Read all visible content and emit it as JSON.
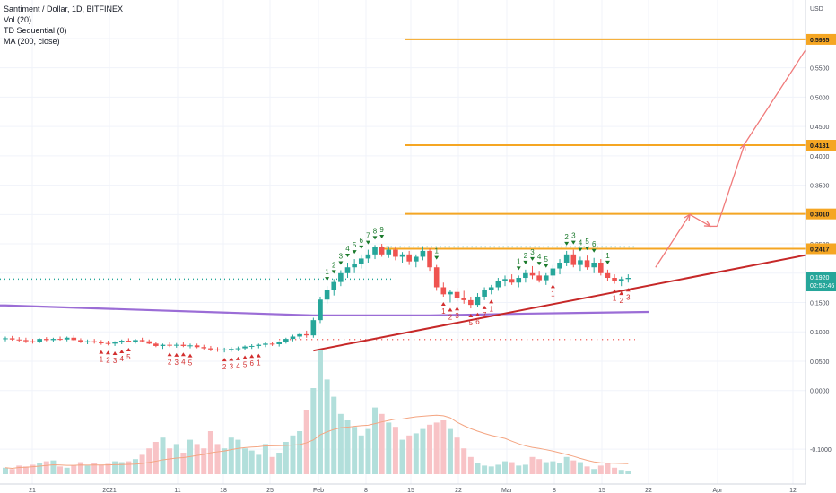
{
  "legend": {
    "title": "Santiment / Dollar, 1D, BITFINEX",
    "vol": "Vol (20)",
    "td": "TD Sequential (0)",
    "ma": "MA (200, close)"
  },
  "colors": {
    "up": "#26a69a",
    "down": "#ef5350",
    "ma": "#9b6dd6",
    "trend": "#c62828",
    "levels": "#f5a623",
    "arrows": "#f07a7a",
    "volMa": "#f4a582"
  },
  "chart_data": {
    "type": "candlestick",
    "title": "Santiment / Dollar, 1D, BITFINEX",
    "currency_label": "USD",
    "y_ticks": [
      "0.6000",
      "0.5500",
      "0.5000",
      "0.4500",
      "0.4000",
      "0.3500",
      "0.3000",
      "0.2500",
      "0.2000",
      "0.1500",
      "0.1000",
      "0.0500",
      "0.0000",
      "-0.1000"
    ],
    "x_ticks": [
      "21",
      "2021",
      "11",
      "18",
      "25",
      "Feb",
      "8",
      "15",
      "22",
      "Mar",
      "8",
      "15",
      "22",
      "Apr",
      "12"
    ],
    "last_price": "0.1920",
    "countdown": "02:52:46",
    "levels": [
      {
        "value": 0.2417,
        "label": "0.2417"
      },
      {
        "value": 0.301,
        "label": "0.3010"
      },
      {
        "value": 0.4181,
        "label": "0.4181"
      },
      {
        "value": 0.5985,
        "label": "0.5985"
      }
    ],
    "support_dotted_level": 0.19,
    "resistance_dotted_level": 0.245,
    "lower_dotted_level": 0.087,
    "trendline": {
      "start": {
        "x": "Jan 29",
        "y": 0.068
      },
      "end": {
        "x": "Apr 15",
        "y": 0.24
      }
    },
    "ma200": [
      {
        "x": "Dec 15",
        "y": 0.145
      },
      {
        "x": "Jan 29",
        "y": 0.128
      },
      {
        "x": "Feb 15",
        "y": 0.128
      },
      {
        "x": "Mar 1",
        "y": 0.131
      },
      {
        "x": "Mar 19",
        "y": 0.134
      }
    ],
    "projection_path": [
      {
        "x": "Mar 20",
        "y": 0.21
      },
      {
        "x": "Mar 25",
        "y": 0.3
      },
      {
        "x": "Mar 28",
        "y": 0.28
      },
      {
        "x": "Mar 29",
        "y": 0.28
      },
      {
        "x": "Apr 2",
        "y": 0.42
      },
      {
        "x": "Apr 12",
        "y": 0.6
      }
    ],
    "candles": [
      [
        0.088,
        0.092,
        0.084,
        0.089
      ],
      [
        0.089,
        0.093,
        0.085,
        0.087
      ],
      [
        0.087,
        0.091,
        0.083,
        0.086
      ],
      [
        0.086,
        0.09,
        0.081,
        0.084
      ],
      [
        0.084,
        0.088,
        0.08,
        0.083
      ],
      [
        0.083,
        0.089,
        0.081,
        0.088
      ],
      [
        0.088,
        0.091,
        0.084,
        0.086
      ],
      [
        0.086,
        0.09,
        0.083,
        0.088
      ],
      [
        0.088,
        0.092,
        0.085,
        0.087
      ],
      [
        0.087,
        0.092,
        0.084,
        0.09
      ],
      [
        0.09,
        0.094,
        0.085,
        0.086
      ],
      [
        0.086,
        0.089,
        0.081,
        0.083
      ],
      [
        0.083,
        0.087,
        0.079,
        0.084
      ],
      [
        0.084,
        0.088,
        0.08,
        0.082
      ],
      [
        0.082,
        0.086,
        0.078,
        0.081
      ],
      [
        0.081,
        0.085,
        0.077,
        0.08
      ],
      [
        0.08,
        0.084,
        0.076,
        0.082
      ],
      [
        0.082,
        0.087,
        0.079,
        0.085
      ],
      [
        0.085,
        0.089,
        0.082,
        0.083
      ],
      [
        0.083,
        0.088,
        0.08,
        0.086
      ],
      [
        0.086,
        0.09,
        0.082,
        0.084
      ],
      [
        0.084,
        0.087,
        0.079,
        0.08
      ],
      [
        0.08,
        0.083,
        0.074,
        0.076
      ],
      [
        0.076,
        0.08,
        0.071,
        0.078
      ],
      [
        0.078,
        0.082,
        0.074,
        0.077
      ],
      [
        0.077,
        0.081,
        0.073,
        0.078
      ],
      [
        0.078,
        0.082,
        0.074,
        0.076
      ],
      [
        0.076,
        0.08,
        0.072,
        0.077
      ],
      [
        0.077,
        0.08,
        0.072,
        0.074
      ],
      [
        0.074,
        0.078,
        0.07,
        0.072
      ],
      [
        0.072,
        0.076,
        0.067,
        0.07
      ],
      [
        0.07,
        0.074,
        0.066,
        0.069
      ],
      [
        0.069,
        0.073,
        0.065,
        0.07
      ],
      [
        0.07,
        0.074,
        0.066,
        0.071
      ],
      [
        0.071,
        0.075,
        0.067,
        0.072
      ],
      [
        0.072,
        0.077,
        0.069,
        0.075
      ],
      [
        0.075,
        0.079,
        0.071,
        0.076
      ],
      [
        0.076,
        0.08,
        0.072,
        0.078
      ],
      [
        0.078,
        0.082,
        0.074,
        0.08
      ],
      [
        0.08,
        0.083,
        0.076,
        0.079
      ],
      [
        0.079,
        0.084,
        0.075,
        0.083
      ],
      [
        0.083,
        0.09,
        0.08,
        0.088
      ],
      [
        0.088,
        0.095,
        0.084,
        0.092
      ],
      [
        0.092,
        0.099,
        0.088,
        0.096
      ],
      [
        0.096,
        0.102,
        0.09,
        0.094
      ],
      [
        0.094,
        0.124,
        0.09,
        0.12
      ],
      [
        0.12,
        0.16,
        0.115,
        0.155
      ],
      [
        0.155,
        0.178,
        0.148,
        0.172
      ],
      [
        0.172,
        0.19,
        0.162,
        0.185
      ],
      [
        0.185,
        0.205,
        0.178,
        0.2
      ],
      [
        0.2,
        0.218,
        0.192,
        0.21
      ],
      [
        0.21,
        0.224,
        0.2,
        0.216
      ],
      [
        0.216,
        0.232,
        0.208,
        0.225
      ],
      [
        0.225,
        0.24,
        0.218,
        0.232
      ],
      [
        0.232,
        0.248,
        0.224,
        0.245
      ],
      [
        0.245,
        0.25,
        0.228,
        0.232
      ],
      [
        0.232,
        0.246,
        0.226,
        0.24
      ],
      [
        0.24,
        0.244,
        0.222,
        0.228
      ],
      [
        0.228,
        0.236,
        0.218,
        0.232
      ],
      [
        0.232,
        0.238,
        0.214,
        0.22
      ],
      [
        0.22,
        0.232,
        0.21,
        0.228
      ],
      [
        0.228,
        0.246,
        0.222,
        0.238
      ],
      [
        0.238,
        0.242,
        0.204,
        0.21
      ],
      [
        0.21,
        0.214,
        0.17,
        0.176
      ],
      [
        0.176,
        0.184,
        0.16,
        0.164
      ],
      [
        0.164,
        0.172,
        0.15,
        0.168
      ],
      [
        0.168,
        0.175,
        0.152,
        0.158
      ],
      [
        0.158,
        0.17,
        0.148,
        0.154
      ],
      [
        0.154,
        0.16,
        0.14,
        0.146
      ],
      [
        0.146,
        0.166,
        0.142,
        0.16
      ],
      [
        0.16,
        0.176,
        0.154,
        0.172
      ],
      [
        0.172,
        0.18,
        0.164,
        0.176
      ],
      [
        0.176,
        0.192,
        0.17,
        0.186
      ],
      [
        0.186,
        0.196,
        0.178,
        0.19
      ],
      [
        0.19,
        0.198,
        0.18,
        0.184
      ],
      [
        0.184,
        0.196,
        0.176,
        0.192
      ],
      [
        0.192,
        0.206,
        0.184,
        0.2
      ],
      [
        0.2,
        0.212,
        0.19,
        0.196
      ],
      [
        0.196,
        0.204,
        0.184,
        0.188
      ],
      [
        0.188,
        0.2,
        0.18,
        0.196
      ],
      [
        0.196,
        0.214,
        0.19,
        0.208
      ],
      [
        0.208,
        0.224,
        0.198,
        0.218
      ],
      [
        0.218,
        0.238,
        0.212,
        0.232
      ],
      [
        0.232,
        0.24,
        0.21,
        0.214
      ],
      [
        0.214,
        0.228,
        0.204,
        0.222
      ],
      [
        0.222,
        0.23,
        0.206,
        0.21
      ],
      [
        0.21,
        0.226,
        0.2,
        0.218
      ],
      [
        0.218,
        0.224,
        0.196,
        0.2
      ],
      [
        0.2,
        0.206,
        0.186,
        0.192
      ],
      [
        0.192,
        0.198,
        0.182,
        0.186
      ],
      [
        0.186,
        0.194,
        0.178,
        0.19
      ],
      [
        0.19,
        0.198,
        0.184,
        0.192
      ]
    ],
    "volumes": [
      0.015,
      0.012,
      0.02,
      0.018,
      0.022,
      0.025,
      0.03,
      0.032,
      0.018,
      0.015,
      0.02,
      0.028,
      0.02,
      0.025,
      0.022,
      0.024,
      0.03,
      0.028,
      0.03,
      0.035,
      0.045,
      0.06,
      0.075,
      0.085,
      0.06,
      0.07,
      0.05,
      0.08,
      0.07,
      0.06,
      0.1,
      0.07,
      0.06,
      0.085,
      0.08,
      0.06,
      0.055,
      0.045,
      0.07,
      0.04,
      0.05,
      0.075,
      0.09,
      0.1,
      0.15,
      0.2,
      0.29,
      0.22,
      0.18,
      0.14,
      0.125,
      0.11,
      0.09,
      0.105,
      0.155,
      0.14,
      0.12,
      0.11,
      0.08,
      0.09,
      0.095,
      0.105,
      0.115,
      0.12,
      0.125,
      0.105,
      0.085,
      0.06,
      0.04,
      0.025,
      0.02,
      0.018,
      0.022,
      0.03,
      0.028,
      0.02,
      0.022,
      0.04,
      0.035,
      0.028,
      0.03,
      0.025,
      0.04,
      0.032,
      0.028,
      0.018,
      0.012,
      0.02,
      0.025,
      0.015,
      0.01,
      0.008
    ],
    "td_setup_labels": [
      {
        "i": 47,
        "label": "1",
        "side": "top"
      },
      {
        "i": 48,
        "label": "2",
        "side": "top"
      },
      {
        "i": 49,
        "label": "3",
        "side": "top"
      },
      {
        "i": 50,
        "label": "4",
        "side": "top"
      },
      {
        "i": 51,
        "label": "5",
        "side": "top"
      },
      {
        "i": 52,
        "label": "6",
        "side": "top"
      },
      {
        "i": 53,
        "label": "7",
        "side": "top"
      },
      {
        "i": 54,
        "label": "8",
        "side": "top"
      },
      {
        "i": 55,
        "label": "9",
        "side": "top"
      },
      {
        "i": 63,
        "label": "1",
        "side": "top"
      },
      {
        "i": 75,
        "label": "1",
        "side": "top"
      },
      {
        "i": 76,
        "label": "2",
        "side": "top"
      },
      {
        "i": 77,
        "label": "3",
        "side": "top"
      },
      {
        "i": 78,
        "label": "4",
        "side": "top"
      },
      {
        "i": 79,
        "label": "5",
        "side": "top"
      },
      {
        "i": 82,
        "label": "2",
        "side": "top"
      },
      {
        "i": 83,
        "label": "3",
        "side": "top"
      },
      {
        "i": 84,
        "label": "4",
        "side": "top"
      },
      {
        "i": 85,
        "label": "5",
        "side": "top"
      },
      {
        "i": 86,
        "label": "6",
        "side": "top"
      },
      {
        "i": 88,
        "label": "1",
        "side": "top"
      },
      {
        "i": 64,
        "label": "1",
        "side": "bottom"
      },
      {
        "i": 65,
        "label": "2",
        "side": "bottom"
      },
      {
        "i": 66,
        "label": "3",
        "side": "bottom"
      },
      {
        "i": 68,
        "label": "5",
        "side": "bottom"
      },
      {
        "i": 69,
        "label": "6",
        "side": "bottom"
      },
      {
        "i": 70,
        "label": "7",
        "side": "bottom"
      },
      {
        "i": 71,
        "label": "1",
        "side": "bottom"
      },
      {
        "i": 80,
        "label": "1",
        "side": "bottom"
      },
      {
        "i": 89,
        "label": "1",
        "side": "bottom"
      },
      {
        "i": 90,
        "label": "2",
        "side": "bottom"
      },
      {
        "i": 91,
        "label": "3",
        "side": "bottom"
      },
      {
        "i": 14,
        "label": "1",
        "side": "bottom"
      },
      {
        "i": 15,
        "label": "2",
        "side": "bottom"
      },
      {
        "i": 16,
        "label": "3",
        "side": "bottom"
      },
      {
        "i": 17,
        "label": "4",
        "side": "bottom"
      },
      {
        "i": 18,
        "label": "5",
        "side": "bottom"
      },
      {
        "i": 24,
        "label": "2",
        "side": "bottom"
      },
      {
        "i": 25,
        "label": "3",
        "side": "bottom"
      },
      {
        "i": 26,
        "label": "4",
        "side": "bottom"
      },
      {
        "i": 27,
        "label": "5",
        "side": "bottom"
      },
      {
        "i": 32,
        "label": "2",
        "side": "bottom"
      },
      {
        "i": 33,
        "label": "3",
        "side": "bottom"
      },
      {
        "i": 34,
        "label": "4",
        "side": "bottom"
      },
      {
        "i": 35,
        "label": "5",
        "side": "bottom"
      },
      {
        "i": 36,
        "label": "6",
        "side": "bottom"
      },
      {
        "i": 37,
        "label": "1",
        "side": "bottom"
      }
    ]
  }
}
